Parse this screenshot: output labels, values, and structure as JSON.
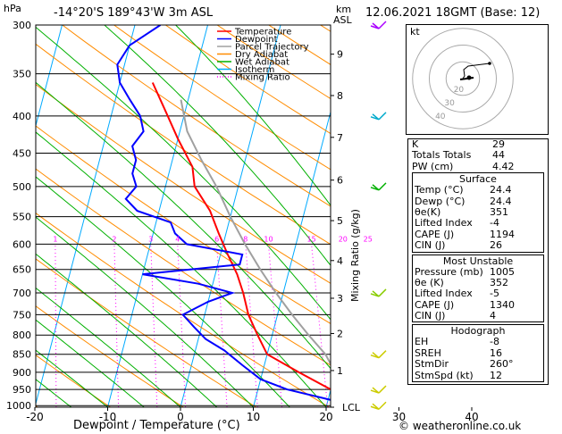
{
  "header": {
    "units_left": "hPa",
    "location": "-14°20'S  189°43'W  3m  ASL",
    "units_right_1": "km",
    "units_right_2": "ASL",
    "datetime": "12.06.2021  18GMT  (Base: 12)"
  },
  "colors": {
    "temperature": "#ff0000",
    "dewpoint": "#0000ff",
    "parcel": "#a0a0a0",
    "dry_adiabat": "#ff8c00",
    "wet_adiabat": "#00b000",
    "isotherm": "#00aaff",
    "mixing_ratio": "#ff00ff"
  },
  "chart_data": {
    "type": "line",
    "xlabel": "Dewpoint / Temperature (°C)",
    "xlim": [
      -35,
      40
    ],
    "x_ticks": [
      -30,
      -20,
      -10,
      0,
      10,
      20,
      30,
      40
    ],
    "pressure_levels": [
      300,
      350,
      400,
      450,
      500,
      550,
      600,
      650,
      700,
      750,
      800,
      850,
      900,
      950,
      1000
    ],
    "height_km_ticks": [
      {
        "label": "9",
        "p": 329
      },
      {
        "label": "8",
        "p": 375
      },
      {
        "label": "7",
        "p": 428
      },
      {
        "label": "6",
        "p": 490
      },
      {
        "label": "5",
        "p": 557
      },
      {
        "label": "4",
        "p": 632
      },
      {
        "label": "3",
        "p": 712
      },
      {
        "label": "2",
        "p": 796
      },
      {
        "label": "1",
        "p": 895
      },
      {
        "label": "LCL",
        "p": 1005
      }
    ],
    "mixing_ratio_axis_label": "Mixing Ratio (g/kg)",
    "mixing_ratio_labels": [
      "1",
      "2",
      "3",
      "4",
      "6",
      "8",
      "10",
      "15",
      "20",
      "25"
    ],
    "mixing_ratio_values": [
      1,
      2,
      3,
      4,
      6,
      8,
      10,
      15,
      20,
      25
    ],
    "legend": [
      "Temperature",
      "Dewpoint",
      "Parcel Trajectory",
      "Dry Adiabat",
      "Wet Adiabat",
      "Isotherm",
      "Mixing Ratio"
    ],
    "series": [
      {
        "name": "Temperature",
        "points": [
          [
            -15.5,
            360
          ],
          [
            -13,
            390
          ],
          [
            -10,
            430
          ],
          [
            -7,
            470
          ],
          [
            -6,
            500
          ],
          [
            -3,
            540
          ],
          [
            -1,
            580
          ],
          [
            1,
            620
          ],
          [
            3,
            660
          ],
          [
            4.5,
            700
          ],
          [
            6,
            750
          ],
          [
            8,
            800
          ],
          [
            10,
            850
          ],
          [
            15,
            900
          ],
          [
            20,
            950
          ],
          [
            24.4,
            1005
          ]
        ]
      },
      {
        "name": "Dewpoint",
        "points": [
          [
            -16.5,
            300
          ],
          [
            -20,
            320
          ],
          [
            -21,
            340
          ],
          [
            -20,
            360
          ],
          [
            -18,
            380
          ],
          [
            -16,
            400
          ],
          [
            -15,
            420
          ],
          [
            -16,
            440
          ],
          [
            -15,
            460
          ],
          [
            -15,
            480
          ],
          [
            -14,
            500
          ],
          [
            -15,
            520
          ],
          [
            -13,
            540
          ],
          [
            -8,
            560
          ],
          [
            -7,
            580
          ],
          [
            -5,
            600
          ],
          [
            3,
            620
          ],
          [
            3,
            640
          ],
          [
            -10,
            660
          ],
          [
            -2,
            680
          ],
          [
            3,
            700
          ],
          [
            0,
            720
          ],
          [
            -3,
            750
          ],
          [
            -1,
            780
          ],
          [
            1,
            810
          ],
          [
            4,
            840
          ],
          [
            7,
            880
          ],
          [
            10,
            920
          ],
          [
            14,
            950
          ],
          [
            20,
            980
          ],
          [
            24.4,
            1005
          ]
        ]
      },
      {
        "name": "Parcel Trajectory",
        "points": [
          [
            -11,
            380
          ],
          [
            -9,
            420
          ],
          [
            -6,
            460
          ],
          [
            -3,
            500
          ],
          [
            0,
            550
          ],
          [
            3,
            600
          ],
          [
            6,
            650
          ],
          [
            9,
            700
          ],
          [
            12,
            750
          ],
          [
            15,
            800
          ],
          [
            18,
            850
          ],
          [
            20,
            900
          ],
          [
            22,
            950
          ],
          [
            24.4,
            1005
          ]
        ]
      }
    ]
  },
  "hodograph": {
    "label": "kt",
    "ring_labels": [
      "40",
      "30",
      "20"
    ]
  },
  "indices": [
    {
      "label": "K",
      "value": "29"
    },
    {
      "label": "Totals Totals",
      "value": "44"
    },
    {
      "label": "PW (cm)",
      "value": "4.42"
    }
  ],
  "surface": {
    "title": "Surface",
    "rows": [
      {
        "label": "Temp (°C)",
        "value": "24.4"
      },
      {
        "label": "Dewp (°C)",
        "value": "24.4"
      },
      {
        "label": "θe(K)",
        "value": "351"
      },
      {
        "label": "Lifted Index",
        "value": "-4"
      },
      {
        "label": "CAPE (J)",
        "value": "1194"
      },
      {
        "label": "CIN (J)",
        "value": "26"
      }
    ]
  },
  "most_unstable": {
    "title": "Most Unstable",
    "rows": [
      {
        "label": "Pressure (mb)",
        "value": "1005"
      },
      {
        "label": "θe (K)",
        "value": "352"
      },
      {
        "label": "Lifted Index",
        "value": "-5"
      },
      {
        "label": "CAPE (J)",
        "value": "1340"
      },
      {
        "label": "CIN (J)",
        "value": "4"
      }
    ]
  },
  "hodo_table": {
    "title": "Hodograph",
    "rows": [
      {
        "label": "EH",
        "value": "-8"
      },
      {
        "label": "SREH",
        "value": "16"
      },
      {
        "label": "StmDir",
        "value": "260°"
      },
      {
        "label": "StmSpd (kt)",
        "value": "12"
      }
    ]
  },
  "footer": {
    "copyright": "© weatheronline.co.uk"
  }
}
